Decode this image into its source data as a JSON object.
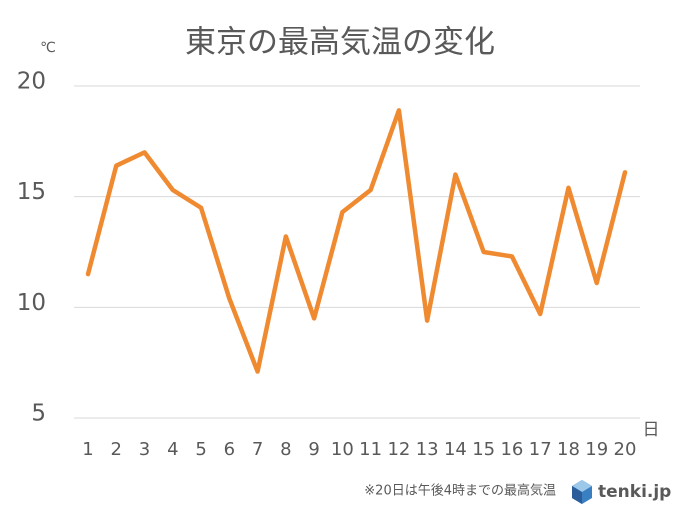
{
  "chart_data": {
    "type": "line",
    "title": "東京の最高気温の変化",
    "y_unit": "℃",
    "x_unit": "日",
    "categories": [
      "1",
      "2",
      "3",
      "4",
      "5",
      "6",
      "7",
      "8",
      "9",
      "10",
      "11",
      "12",
      "13",
      "14",
      "15",
      "16",
      "17",
      "18",
      "19",
      "20"
    ],
    "series": [
      {
        "name": "最高気温",
        "color": "#f08a31",
        "values": [
          11.5,
          16.4,
          17.0,
          15.3,
          14.5,
          10.4,
          7.1,
          13.2,
          9.5,
          14.3,
          15.3,
          18.9,
          9.4,
          16.0,
          12.5,
          12.3,
          9.7,
          15.4,
          11.1,
          16.1
        ]
      }
    ],
    "ylim": [
      5,
      20
    ],
    "yticks": [
      5,
      10,
      15,
      20
    ],
    "grid": true,
    "note": "※20日は午後4時までの最高気温",
    "logo": "tenki.jp"
  }
}
